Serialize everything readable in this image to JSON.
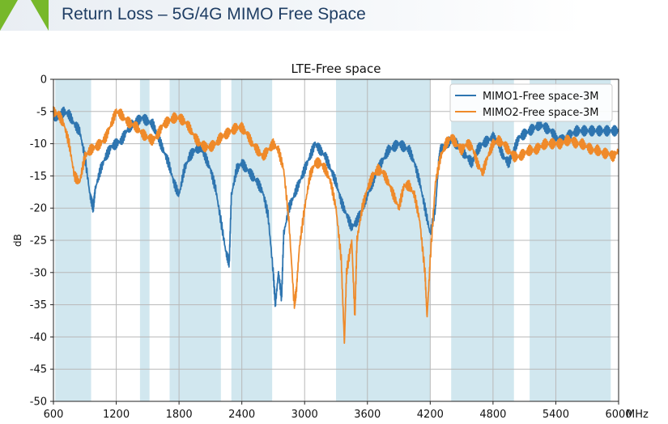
{
  "slide": {
    "title": "Return Loss – 5G/4G MIMO Free Space",
    "accent_color": "#77b82a",
    "title_color": "#1f3e64"
  },
  "chart_data": {
    "type": "line",
    "title": "LTE-Free space",
    "xlabel": "",
    "ylabel": "dB",
    "x_unit": "MHz",
    "xlim": [
      600,
      6000
    ],
    "ylim": [
      -50,
      0
    ],
    "xticks": [
      600,
      1200,
      1800,
      2400,
      3000,
      3600,
      4200,
      4800,
      5400,
      6000
    ],
    "yticks": [
      0,
      -5,
      -10,
      -15,
      -20,
      -25,
      -30,
      -35,
      -40,
      -45,
      -50
    ],
    "grid": true,
    "legend_position": "top-right",
    "shaded_bands_mhz": [
      [
        617,
        960
      ],
      [
        1427,
        1518
      ],
      [
        1710,
        2200
      ],
      [
        2300,
        2690
      ],
      [
        3300,
        4200
      ],
      [
        4400,
        5000
      ],
      [
        5150,
        5925
      ]
    ],
    "band_color": "#d1e7ef",
    "series": [
      {
        "name": "MIMO1-Free space-3M",
        "color": "#2e75b0",
        "x": [
          600,
          650,
          700,
          750,
          800,
          850,
          900,
          950,
          980,
          1000,
          1050,
          1100,
          1150,
          1200,
          1250,
          1300,
          1350,
          1400,
          1450,
          1500,
          1550,
          1600,
          1650,
          1700,
          1750,
          1800,
          1850,
          1900,
          1950,
          2000,
          2050,
          2100,
          2150,
          2200,
          2250,
          2280,
          2300,
          2350,
          2400,
          2450,
          2500,
          2550,
          2600,
          2650,
          2700,
          2720,
          2750,
          2780,
          2800,
          2850,
          2900,
          2950,
          3000,
          3050,
          3100,
          3150,
          3200,
          3250,
          3300,
          3350,
          3400,
          3450,
          3500,
          3550,
          3600,
          3650,
          3700,
          3750,
          3800,
          3850,
          3900,
          3950,
          4000,
          4050,
          4100,
          4150,
          4200,
          4250,
          4280,
          4300,
          4350,
          4400,
          4450,
          4500,
          4550,
          4600,
          4650,
          4700,
          4750,
          4800,
          4850,
          4900,
          4950,
          5000,
          5050,
          5100,
          5150,
          5200,
          5250,
          5300,
          5350,
          5400,
          5450,
          5500,
          5550,
          5600,
          5650,
          5700,
          5750,
          5800,
          5850,
          5900,
          5950,
          6000
        ],
        "y": [
          -5.5,
          -6,
          -5,
          -5.5,
          -7,
          -8,
          -12,
          -18,
          -20,
          -17,
          -14,
          -12,
          -10.5,
          -10,
          -9.5,
          -8,
          -7,
          -6.5,
          -6,
          -6.5,
          -7,
          -9,
          -11,
          -13,
          -16,
          -18,
          -14,
          -12,
          -11,
          -10.5,
          -12,
          -14,
          -17,
          -22,
          -27,
          -28.5,
          -18,
          -14,
          -13,
          -14,
          -15,
          -16,
          -17.5,
          -21,
          -30,
          -35,
          -30,
          -34,
          -24,
          -20,
          -18,
          -16,
          -14,
          -12,
          -10,
          -11,
          -12,
          -14,
          -16,
          -19,
          -21,
          -23,
          -22,
          -20,
          -18,
          -16,
          -14,
          -12.5,
          -11,
          -10.5,
          -10,
          -10.5,
          -11,
          -13,
          -16,
          -20,
          -24,
          -20,
          -13,
          -11,
          -10,
          -9.5,
          -10,
          -11,
          -12,
          -13,
          -11,
          -10,
          -9.5,
          -9,
          -10,
          -12,
          -13,
          -11,
          -9,
          -8.5,
          -8,
          -7.5,
          -7,
          -7.5,
          -8,
          -9,
          -9.5,
          -9,
          -8.5,
          -8,
          -8,
          -8,
          -8,
          -8,
          -8,
          -8,
          -8,
          -8
        ]
      },
      {
        "name": "MIMO2-Free space-3M",
        "color": "#ef8a2a",
        "x": [
          600,
          650,
          700,
          750,
          800,
          850,
          900,
          950,
          1000,
          1050,
          1100,
          1150,
          1200,
          1250,
          1300,
          1350,
          1400,
          1450,
          1500,
          1550,
          1600,
          1650,
          1700,
          1750,
          1800,
          1850,
          1900,
          1950,
          2000,
          2050,
          2100,
          2150,
          2200,
          2250,
          2300,
          2350,
          2400,
          2450,
          2500,
          2550,
          2600,
          2650,
          2700,
          2750,
          2800,
          2850,
          2900,
          2920,
          2950,
          3000,
          3050,
          3100,
          3150,
          3200,
          3250,
          3300,
          3350,
          3380,
          3400,
          3450,
          3480,
          3500,
          3550,
          3600,
          3650,
          3700,
          3750,
          3800,
          3850,
          3900,
          3950,
          4000,
          4050,
          4100,
          4150,
          4170,
          4200,
          4250,
          4300,
          4350,
          4400,
          4450,
          4500,
          4550,
          4600,
          4650,
          4700,
          4750,
          4800,
          4850,
          4900,
          4950,
          5000,
          5050,
          5100,
          5150,
          5200,
          5250,
          5300,
          5350,
          5400,
          5450,
          5500,
          5550,
          5600,
          5650,
          5700,
          5750,
          5800,
          5850,
          5900,
          5950,
          6000
        ],
        "y": [
          -5,
          -5.5,
          -7,
          -10,
          -15,
          -16,
          -12,
          -11,
          -10.5,
          -10,
          -9,
          -7,
          -5,
          -5.5,
          -6.5,
          -7,
          -7.5,
          -8.5,
          -9,
          -9.5,
          -8.5,
          -7,
          -6.5,
          -6,
          -6,
          -6.5,
          -7.5,
          -9,
          -10,
          -10.5,
          -10.5,
          -10,
          -9,
          -8.5,
          -8,
          -7.5,
          -7.5,
          -8.5,
          -10,
          -11,
          -12,
          -11,
          -10,
          -11,
          -14,
          -22,
          -35,
          -33,
          -26,
          -20,
          -15,
          -13,
          -13,
          -14,
          -16,
          -20,
          -28,
          -41,
          -30,
          -25,
          -37,
          -25,
          -20,
          -17,
          -15,
          -14,
          -14.5,
          -16,
          -18,
          -20,
          -16.5,
          -16.5,
          -18,
          -22,
          -30,
          -37,
          -28,
          -16,
          -12,
          -10,
          -9,
          -10,
          -11,
          -10,
          -10.5,
          -13,
          -14.5,
          -12,
          -10,
          -9.5,
          -10,
          -11,
          -12,
          -12,
          -11.5,
          -11,
          -11,
          -10.5,
          -10,
          -10,
          -10,
          -10,
          -9.5,
          -9.5,
          -10,
          -10,
          -10.5,
          -11,
          -11,
          -11.5,
          -11.5,
          -12,
          -11
        ]
      }
    ]
  }
}
